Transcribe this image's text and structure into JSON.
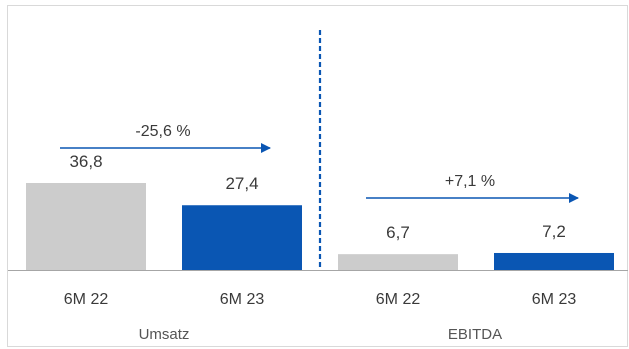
{
  "chart_data": {
    "type": "bar",
    "groups": [
      {
        "name": "Umsatz",
        "categories": [
          "6M 22",
          "6M 23"
        ],
        "values": [
          36.8,
          27.4
        ],
        "value_labels": [
          "36,8",
          "27,4"
        ],
        "change_label": "-25,6 %",
        "ylim": [
          0,
          110
        ]
      },
      {
        "name": "EBITDA",
        "categories": [
          "6M 22",
          "6M 23"
        ],
        "values": [
          6.7,
          7.2
        ],
        "value_labels": [
          "6,7",
          "7,2"
        ],
        "change_label": "+7,1 %",
        "ylim": [
          0,
          110
        ]
      }
    ],
    "colors": {
      "prior_period": "#cccccc",
      "current_period": "#0a56b3",
      "arrow": "#0a56b3",
      "divider": "#0a56b3",
      "frame": "#d9d9d9",
      "axis": "#a6a6a6"
    },
    "grid": false,
    "legend": "none"
  }
}
